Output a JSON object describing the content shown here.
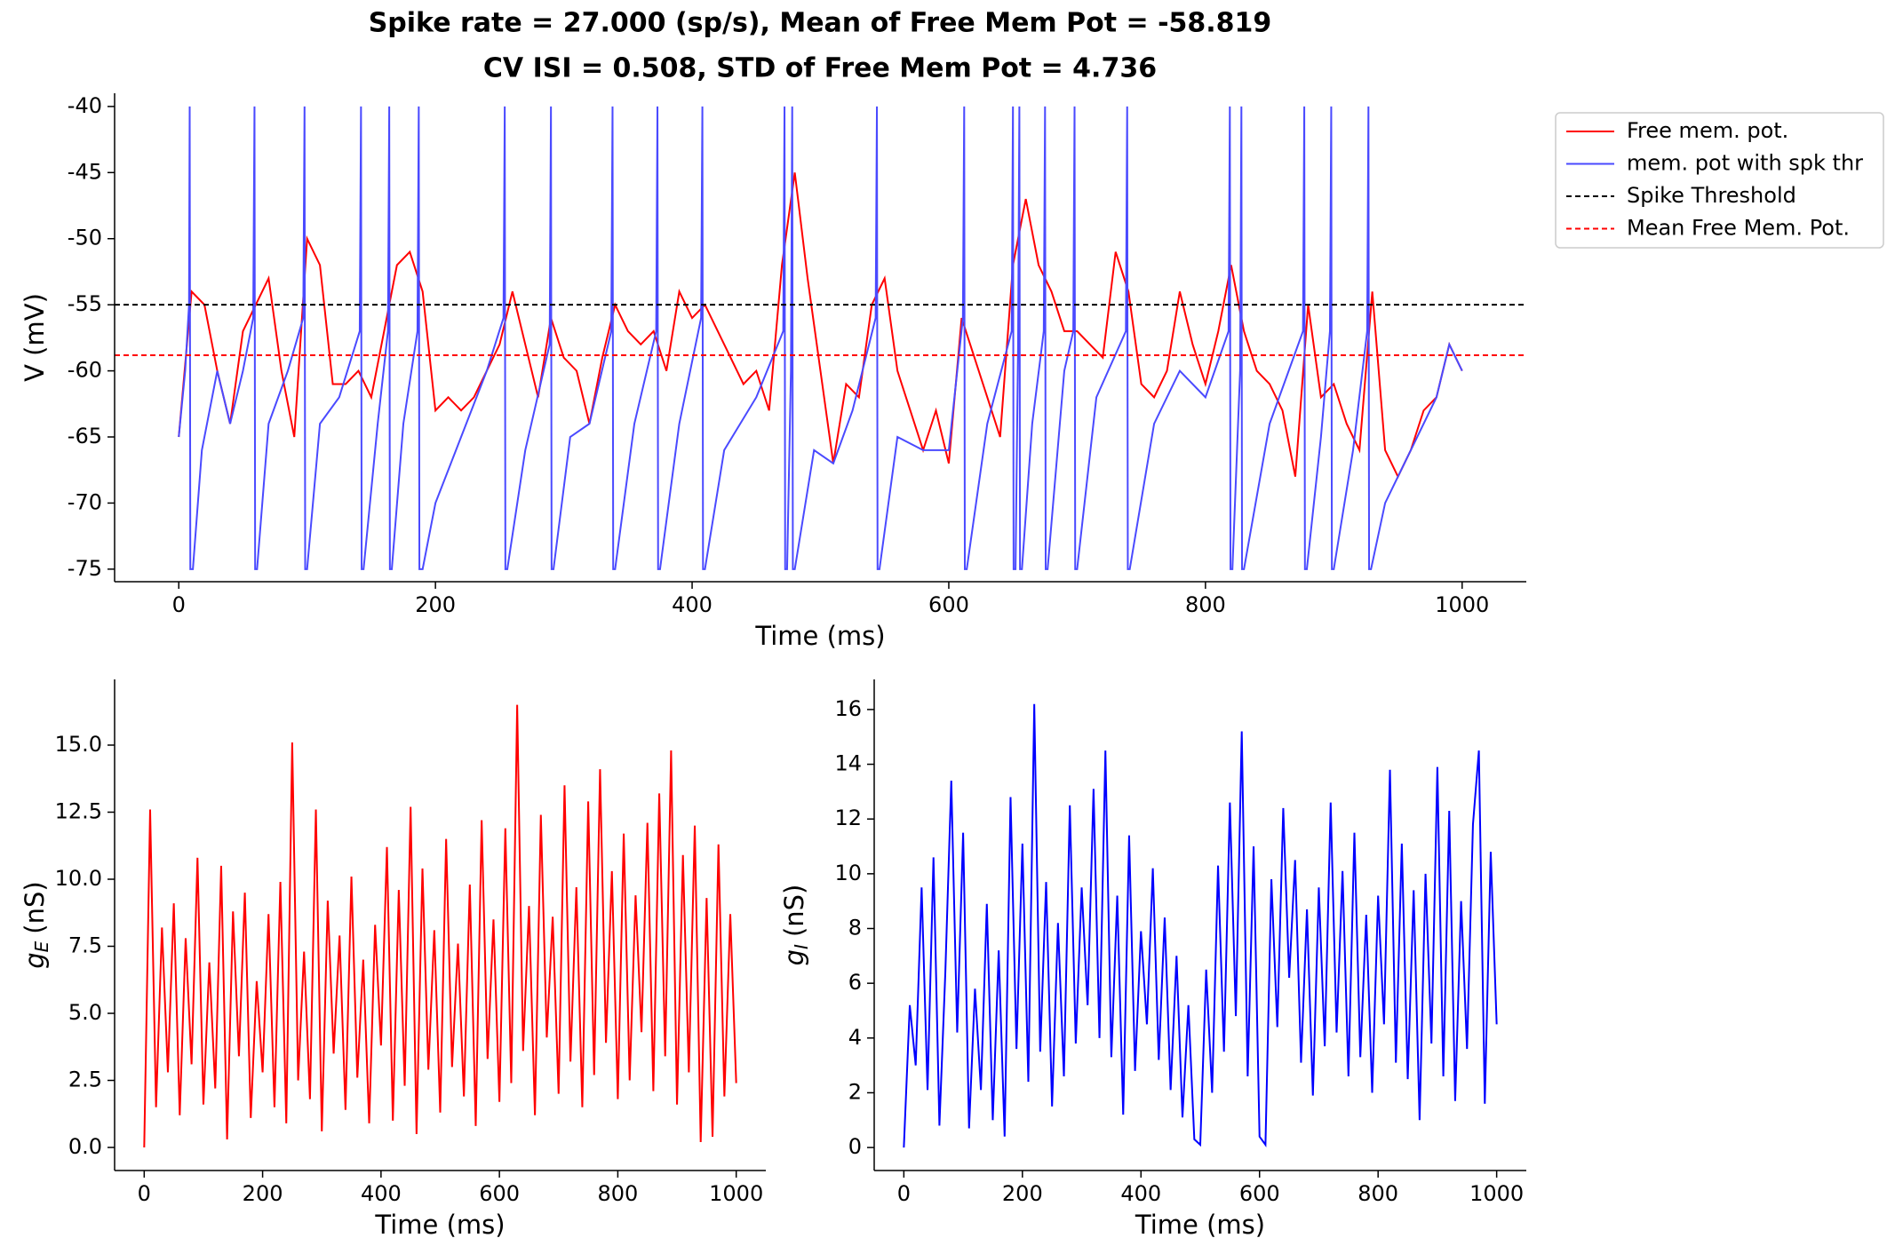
{
  "chart_data": [
    {
      "type": "line",
      "title": "Spike rate = 27.000 (sp/s), Mean of Free Mem Pot = -58.819",
      "subtitle": "CV ISI = 0.508, STD of Free Mem Pot = 4.736",
      "xlabel": "Time (ms)",
      "ylabel": "V (mV)",
      "xlim": [
        -50,
        1050
      ],
      "xticks": [
        0,
        200,
        400,
        600,
        800,
        1000
      ],
      "ylim": [
        -75.95,
        -39
      ],
      "yticks": [
        -75,
        -70,
        -65,
        -60,
        -55,
        -50,
        -45,
        -40
      ],
      "legend": "outside upper right",
      "series": [
        {
          "name": "Free mem. pot.",
          "color": "#ff0000",
          "x": [
            0,
            10,
            20,
            30,
            40,
            50,
            60,
            70,
            80,
            90,
            100,
            110,
            120,
            130,
            140,
            150,
            160,
            170,
            180,
            190,
            200,
            210,
            220,
            230,
            240,
            250,
            260,
            270,
            280,
            290,
            300,
            310,
            320,
            330,
            340,
            350,
            360,
            370,
            380,
            390,
            400,
            410,
            420,
            430,
            440,
            450,
            460,
            470,
            480,
            490,
            500,
            510,
            520,
            530,
            540,
            550,
            560,
            570,
            580,
            590,
            600,
            610,
            620,
            630,
            640,
            650,
            660,
            670,
            680,
            690,
            700,
            710,
            720,
            730,
            740,
            750,
            760,
            770,
            780,
            790,
            800,
            810,
            820,
            830,
            840,
            850,
            860,
            870,
            880,
            890,
            900,
            910,
            920,
            930,
            940,
            950,
            960,
            970,
            980,
            990,
            1000
          ],
          "values": [
            -65,
            -54,
            -55,
            -60,
            -64,
            -57,
            -55,
            -53,
            -60,
            -65,
            -50,
            -52,
            -61,
            -61,
            -60,
            -62,
            -57,
            -52,
            -51,
            -54,
            -63,
            -62,
            -63,
            -62,
            -60,
            -58,
            -54,
            -58,
            -62,
            -56,
            -59,
            -60,
            -64,
            -59,
            -55,
            -57,
            -58,
            -57,
            -60,
            -54,
            -56,
            -55,
            -57,
            -59,
            -61,
            -60,
            -63,
            -52,
            -45,
            -53,
            -60,
            -67,
            -61,
            -62,
            -55,
            -53,
            -60,
            -63,
            -66,
            -63,
            -67,
            -56,
            -59,
            -62,
            -65,
            -52,
            -47,
            -52,
            -54,
            -57,
            -57,
            -58,
            -59,
            -51,
            -54,
            -61,
            -62,
            -60,
            -54,
            -58,
            -61,
            -57,
            -52,
            -57,
            -60,
            -61,
            -63,
            -68,
            -55,
            -62,
            -61,
            -64,
            -66,
            -54,
            -66,
            -68,
            -66,
            -63,
            -62,
            -58,
            -60
          ]
        },
        {
          "name": "mem. pot with spk thr",
          "color": "#4a4aff",
          "x": [
            0,
            5,
            8,
            8.5,
            9,
            11,
            18,
            30,
            40,
            50,
            58,
            59,
            59.5,
            61,
            70,
            85,
            97,
            98,
            98.5,
            100,
            110,
            125,
            141,
            142,
            142.5,
            144,
            155,
            163,
            164,
            164.5,
            166,
            175,
            186,
            187,
            187.5,
            190,
            200,
            220,
            240,
            253,
            254,
            254.5,
            256,
            270,
            289,
            290,
            290.5,
            292,
            305,
            320,
            337,
            338,
            338.5,
            340,
            355,
            372,
            373,
            373.5,
            375,
            390,
            407,
            408,
            408.5,
            410,
            425,
            450,
            471,
            472,
            472.5,
            474,
            477,
            478,
            478.5,
            480,
            495,
            510,
            525,
            543,
            544,
            544.5,
            546,
            560,
            580,
            600,
            611,
            612,
            612.5,
            614,
            630,
            649,
            650,
            650.5,
            652,
            654,
            655,
            655.5,
            657,
            665,
            674,
            675,
            675.5,
            677,
            690,
            697,
            698,
            698.5,
            700,
            715,
            738,
            739,
            739.5,
            741,
            760,
            780,
            800,
            818,
            819,
            819.5,
            821,
            827,
            828,
            828.5,
            830,
            850,
            876,
            877,
            877.5,
            879,
            890,
            897,
            898,
            898.5,
            900,
            915,
            926,
            927,
            927.5,
            929,
            940,
            960,
            980,
            990,
            1000
          ],
          "values": [
            -65,
            -60,
            -55,
            -40,
            -75,
            -75,
            -66,
            -60,
            -64,
            -60,
            -56,
            -40,
            -75,
            -75,
            -64,
            -60,
            -56,
            -40,
            -75,
            -75,
            -64,
            -62,
            -57,
            -40,
            -75,
            -75,
            -64,
            -57,
            -40,
            -75,
            -75,
            -64,
            -57,
            -40,
            -75,
            -75,
            -70,
            -65,
            -60,
            -56,
            -40,
            -75,
            -75,
            -66,
            -58,
            -40,
            -75,
            -75,
            -65,
            -64,
            -57,
            -40,
            -75,
            -75,
            -64,
            -57,
            -40,
            -75,
            -75,
            -64,
            -56,
            -40,
            -75,
            -75,
            -66,
            -62,
            -57,
            -40,
            -75,
            -75,
            -60,
            -40,
            -75,
            -75,
            -66,
            -67,
            -63,
            -56,
            -40,
            -75,
            -75,
            -65,
            -66,
            -66,
            -56,
            -40,
            -75,
            -75,
            -64,
            -57,
            -40,
            -75,
            -75,
            -58,
            -40,
            -75,
            -75,
            -64,
            -57,
            -40,
            -75,
            -75,
            -60,
            -57,
            -40,
            -75,
            -75,
            -62,
            -57,
            -40,
            -75,
            -75,
            -64,
            -60,
            -62,
            -57,
            -40,
            -75,
            -75,
            -60,
            -40,
            -75,
            -75,
            -64,
            -57,
            -40,
            -75,
            -75,
            -65,
            -57,
            -40,
            -75,
            -75,
            -66,
            -57,
            -40,
            -75,
            -75,
            -70,
            -66,
            -62,
            -58,
            -60
          ]
        }
      ],
      "hlines": [
        {
          "name": "Spike Threshold",
          "value": -55,
          "color": "#000000"
        },
        {
          "name": "Mean Free Mem. Pot.",
          "value": -58.819,
          "color": "#ff0000"
        }
      ]
    },
    {
      "type": "line",
      "xlabel": "Time (ms)",
      "ylabel_symbol": "g",
      "ylabel_sub": "E",
      "ylabel_unit": "(nS)",
      "xlim": [
        -50,
        1050
      ],
      "xticks": [
        0,
        200,
        400,
        600,
        800,
        1000
      ],
      "ylim": [
        -0.86,
        17.45
      ],
      "yticks": [
        {
          "value": 0,
          "label": "0.0"
        },
        2.5,
        {
          "value": 5,
          "label": "5.0"
        },
        7.5,
        {
          "value": 10,
          "label": "10.0"
        },
        12.5,
        {
          "value": 15,
          "label": "15.0"
        }
      ],
      "series": [
        {
          "color": "#ff0000",
          "x": [
            0,
            10,
            20,
            30,
            40,
            50,
            60,
            70,
            80,
            90,
            100,
            110,
            120,
            130,
            140,
            150,
            160,
            170,
            180,
            190,
            200,
            210,
            220,
            230,
            240,
            250,
            260,
            270,
            280,
            290,
            300,
            310,
            320,
            330,
            340,
            350,
            360,
            370,
            380,
            390,
            400,
            410,
            420,
            430,
            440,
            450,
            460,
            470,
            480,
            490,
            500,
            510,
            520,
            530,
            540,
            550,
            560,
            570,
            580,
            590,
            600,
            610,
            620,
            630,
            640,
            650,
            660,
            670,
            680,
            690,
            700,
            710,
            720,
            730,
            740,
            750,
            760,
            770,
            780,
            790,
            800,
            810,
            820,
            830,
            840,
            850,
            860,
            870,
            880,
            890,
            900,
            910,
            920,
            930,
            940,
            950,
            960,
            970,
            980,
            990,
            1000
          ],
          "values": [
            0,
            12.6,
            1.5,
            8.2,
            2.8,
            9.1,
            1.2,
            7.8,
            3.1,
            10.8,
            1.6,
            6.9,
            2.2,
            10.5,
            0.3,
            8.8,
            3.4,
            9.5,
            1.1,
            6.2,
            2.8,
            8.7,
            1.5,
            9.9,
            0.9,
            15.1,
            2.5,
            7.3,
            1.8,
            12.6,
            0.6,
            9.2,
            3.5,
            7.9,
            1.4,
            10.1,
            2.6,
            7.0,
            0.9,
            8.3,
            3.8,
            11.2,
            1.0,
            9.6,
            2.3,
            12.7,
            0.5,
            10.4,
            2.9,
            8.1,
            1.3,
            11.5,
            3.0,
            7.6,
            1.9,
            9.8,
            0.8,
            12.2,
            3.3,
            8.5,
            1.7,
            11.9,
            2.4,
            16.5,
            3.6,
            9.0,
            1.2,
            12.4,
            4.1,
            8.6,
            2.0,
            13.5,
            3.2,
            9.7,
            1.5,
            12.9,
            2.7,
            14.1,
            3.9,
            10.3,
            1.8,
            11.7,
            2.5,
            9.4,
            4.3,
            12.1,
            2.1,
            13.2,
            3.4,
            14.8,
            1.6,
            10.9,
            2.8,
            12.0,
            0.2,
            9.3,
            0.4,
            11.3,
            1.9,
            8.7,
            2.4
          ]
        }
      ]
    },
    {
      "type": "line",
      "xlabel": "Time (ms)",
      "ylabel_symbol": "g",
      "ylabel_sub": "I",
      "ylabel_unit": "(nS)",
      "xlim": [
        -50,
        1050
      ],
      "xticks": [
        0,
        200,
        400,
        600,
        800,
        1000
      ],
      "ylim": [
        -0.84,
        17.1
      ],
      "yticks": [
        0,
        2,
        4,
        6,
        8,
        10,
        12,
        14,
        16
      ],
      "series": [
        {
          "color": "#0000ff",
          "x": [
            0,
            10,
            20,
            30,
            40,
            50,
            60,
            70,
            80,
            90,
            100,
            110,
            120,
            130,
            140,
            150,
            160,
            170,
            180,
            190,
            200,
            210,
            220,
            230,
            240,
            250,
            260,
            270,
            280,
            290,
            300,
            310,
            320,
            330,
            340,
            350,
            360,
            370,
            380,
            390,
            400,
            410,
            420,
            430,
            440,
            450,
            460,
            470,
            480,
            490,
            500,
            510,
            520,
            530,
            540,
            550,
            560,
            570,
            580,
            590,
            600,
            610,
            620,
            630,
            640,
            650,
            660,
            670,
            680,
            690,
            700,
            710,
            720,
            730,
            740,
            750,
            760,
            770,
            780,
            790,
            800,
            810,
            820,
            830,
            840,
            850,
            860,
            870,
            880,
            890,
            900,
            910,
            920,
            930,
            940,
            950,
            960,
            970,
            980,
            990,
            1000
          ],
          "values": [
            0,
            5.2,
            3.0,
            9.5,
            2.1,
            10.6,
            0.8,
            6.4,
            13.4,
            4.2,
            11.5,
            0.7,
            5.8,
            2.1,
            8.9,
            1.0,
            7.2,
            0.4,
            12.8,
            3.6,
            11.1,
            2.4,
            16.2,
            3.5,
            9.7,
            1.5,
            8.2,
            2.6,
            12.5,
            3.8,
            9.5,
            5.2,
            13.1,
            4.0,
            14.5,
            3.3,
            9.2,
            1.2,
            11.4,
            2.8,
            7.9,
            4.5,
            10.2,
            3.2,
            8.4,
            2.1,
            7.0,
            1.1,
            5.2,
            0.3,
            0.1,
            6.5,
            2.0,
            10.3,
            3.5,
            12.6,
            4.8,
            15.2,
            2.6,
            11.0,
            0.4,
            0.1,
            9.8,
            4.4,
            12.4,
            6.2,
            10.5,
            3.1,
            8.7,
            1.9,
            9.5,
            3.7,
            12.6,
            4.2,
            10.1,
            2.6,
            11.5,
            3.3,
            8.5,
            2.0,
            9.2,
            4.5,
            13.8,
            3.1,
            11.1,
            2.5,
            9.4,
            1.0,
            10.0,
            3.8,
            13.9,
            2.6,
            12.3,
            1.7,
            9.0,
            3.6,
            11.8,
            14.5,
            1.6,
            10.8,
            4.5
          ]
        }
      ]
    }
  ]
}
